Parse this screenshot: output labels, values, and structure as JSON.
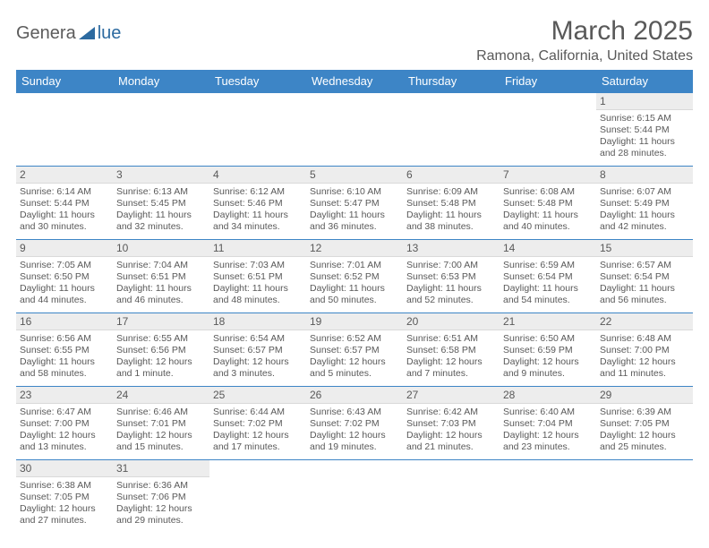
{
  "brand": {
    "left": "Genera",
    "right": "lue"
  },
  "header": {
    "title": "March 2025",
    "location": "Ramona, California, United States"
  },
  "calendar": {
    "header_bg": "#3d85c6",
    "header_fg": "#ffffff",
    "border_color": "#3d85c6",
    "daynum_bg": "#ededed",
    "text_color": "#595959",
    "columns": [
      "Sunday",
      "Monday",
      "Tuesday",
      "Wednesday",
      "Thursday",
      "Friday",
      "Saturday"
    ],
    "weeks": [
      [
        null,
        null,
        null,
        null,
        null,
        null,
        {
          "d": "1",
          "sr": "Sunrise: 6:15 AM",
          "ss": "Sunset: 5:44 PM",
          "dl": "Daylight: 11 hours and 28 minutes."
        }
      ],
      [
        {
          "d": "2",
          "sr": "Sunrise: 6:14 AM",
          "ss": "Sunset: 5:44 PM",
          "dl": "Daylight: 11 hours and 30 minutes."
        },
        {
          "d": "3",
          "sr": "Sunrise: 6:13 AM",
          "ss": "Sunset: 5:45 PM",
          "dl": "Daylight: 11 hours and 32 minutes."
        },
        {
          "d": "4",
          "sr": "Sunrise: 6:12 AM",
          "ss": "Sunset: 5:46 PM",
          "dl": "Daylight: 11 hours and 34 minutes."
        },
        {
          "d": "5",
          "sr": "Sunrise: 6:10 AM",
          "ss": "Sunset: 5:47 PM",
          "dl": "Daylight: 11 hours and 36 minutes."
        },
        {
          "d": "6",
          "sr": "Sunrise: 6:09 AM",
          "ss": "Sunset: 5:48 PM",
          "dl": "Daylight: 11 hours and 38 minutes."
        },
        {
          "d": "7",
          "sr": "Sunrise: 6:08 AM",
          "ss": "Sunset: 5:48 PM",
          "dl": "Daylight: 11 hours and 40 minutes."
        },
        {
          "d": "8",
          "sr": "Sunrise: 6:07 AM",
          "ss": "Sunset: 5:49 PM",
          "dl": "Daylight: 11 hours and 42 minutes."
        }
      ],
      [
        {
          "d": "9",
          "sr": "Sunrise: 7:05 AM",
          "ss": "Sunset: 6:50 PM",
          "dl": "Daylight: 11 hours and 44 minutes."
        },
        {
          "d": "10",
          "sr": "Sunrise: 7:04 AM",
          "ss": "Sunset: 6:51 PM",
          "dl": "Daylight: 11 hours and 46 minutes."
        },
        {
          "d": "11",
          "sr": "Sunrise: 7:03 AM",
          "ss": "Sunset: 6:51 PM",
          "dl": "Daylight: 11 hours and 48 minutes."
        },
        {
          "d": "12",
          "sr": "Sunrise: 7:01 AM",
          "ss": "Sunset: 6:52 PM",
          "dl": "Daylight: 11 hours and 50 minutes."
        },
        {
          "d": "13",
          "sr": "Sunrise: 7:00 AM",
          "ss": "Sunset: 6:53 PM",
          "dl": "Daylight: 11 hours and 52 minutes."
        },
        {
          "d": "14",
          "sr": "Sunrise: 6:59 AM",
          "ss": "Sunset: 6:54 PM",
          "dl": "Daylight: 11 hours and 54 minutes."
        },
        {
          "d": "15",
          "sr": "Sunrise: 6:57 AM",
          "ss": "Sunset: 6:54 PM",
          "dl": "Daylight: 11 hours and 56 minutes."
        }
      ],
      [
        {
          "d": "16",
          "sr": "Sunrise: 6:56 AM",
          "ss": "Sunset: 6:55 PM",
          "dl": "Daylight: 11 hours and 58 minutes."
        },
        {
          "d": "17",
          "sr": "Sunrise: 6:55 AM",
          "ss": "Sunset: 6:56 PM",
          "dl": "Daylight: 12 hours and 1 minute."
        },
        {
          "d": "18",
          "sr": "Sunrise: 6:54 AM",
          "ss": "Sunset: 6:57 PM",
          "dl": "Daylight: 12 hours and 3 minutes."
        },
        {
          "d": "19",
          "sr": "Sunrise: 6:52 AM",
          "ss": "Sunset: 6:57 PM",
          "dl": "Daylight: 12 hours and 5 minutes."
        },
        {
          "d": "20",
          "sr": "Sunrise: 6:51 AM",
          "ss": "Sunset: 6:58 PM",
          "dl": "Daylight: 12 hours and 7 minutes."
        },
        {
          "d": "21",
          "sr": "Sunrise: 6:50 AM",
          "ss": "Sunset: 6:59 PM",
          "dl": "Daylight: 12 hours and 9 minutes."
        },
        {
          "d": "22",
          "sr": "Sunrise: 6:48 AM",
          "ss": "Sunset: 7:00 PM",
          "dl": "Daylight: 12 hours and 11 minutes."
        }
      ],
      [
        {
          "d": "23",
          "sr": "Sunrise: 6:47 AM",
          "ss": "Sunset: 7:00 PM",
          "dl": "Daylight: 12 hours and 13 minutes."
        },
        {
          "d": "24",
          "sr": "Sunrise: 6:46 AM",
          "ss": "Sunset: 7:01 PM",
          "dl": "Daylight: 12 hours and 15 minutes."
        },
        {
          "d": "25",
          "sr": "Sunrise: 6:44 AM",
          "ss": "Sunset: 7:02 PM",
          "dl": "Daylight: 12 hours and 17 minutes."
        },
        {
          "d": "26",
          "sr": "Sunrise: 6:43 AM",
          "ss": "Sunset: 7:02 PM",
          "dl": "Daylight: 12 hours and 19 minutes."
        },
        {
          "d": "27",
          "sr": "Sunrise: 6:42 AM",
          "ss": "Sunset: 7:03 PM",
          "dl": "Daylight: 12 hours and 21 minutes."
        },
        {
          "d": "28",
          "sr": "Sunrise: 6:40 AM",
          "ss": "Sunset: 7:04 PM",
          "dl": "Daylight: 12 hours and 23 minutes."
        },
        {
          "d": "29",
          "sr": "Sunrise: 6:39 AM",
          "ss": "Sunset: 7:05 PM",
          "dl": "Daylight: 12 hours and 25 minutes."
        }
      ],
      [
        {
          "d": "30",
          "sr": "Sunrise: 6:38 AM",
          "ss": "Sunset: 7:05 PM",
          "dl": "Daylight: 12 hours and 27 minutes."
        },
        {
          "d": "31",
          "sr": "Sunrise: 6:36 AM",
          "ss": "Sunset: 7:06 PM",
          "dl": "Daylight: 12 hours and 29 minutes."
        },
        null,
        null,
        null,
        null,
        null
      ]
    ]
  }
}
